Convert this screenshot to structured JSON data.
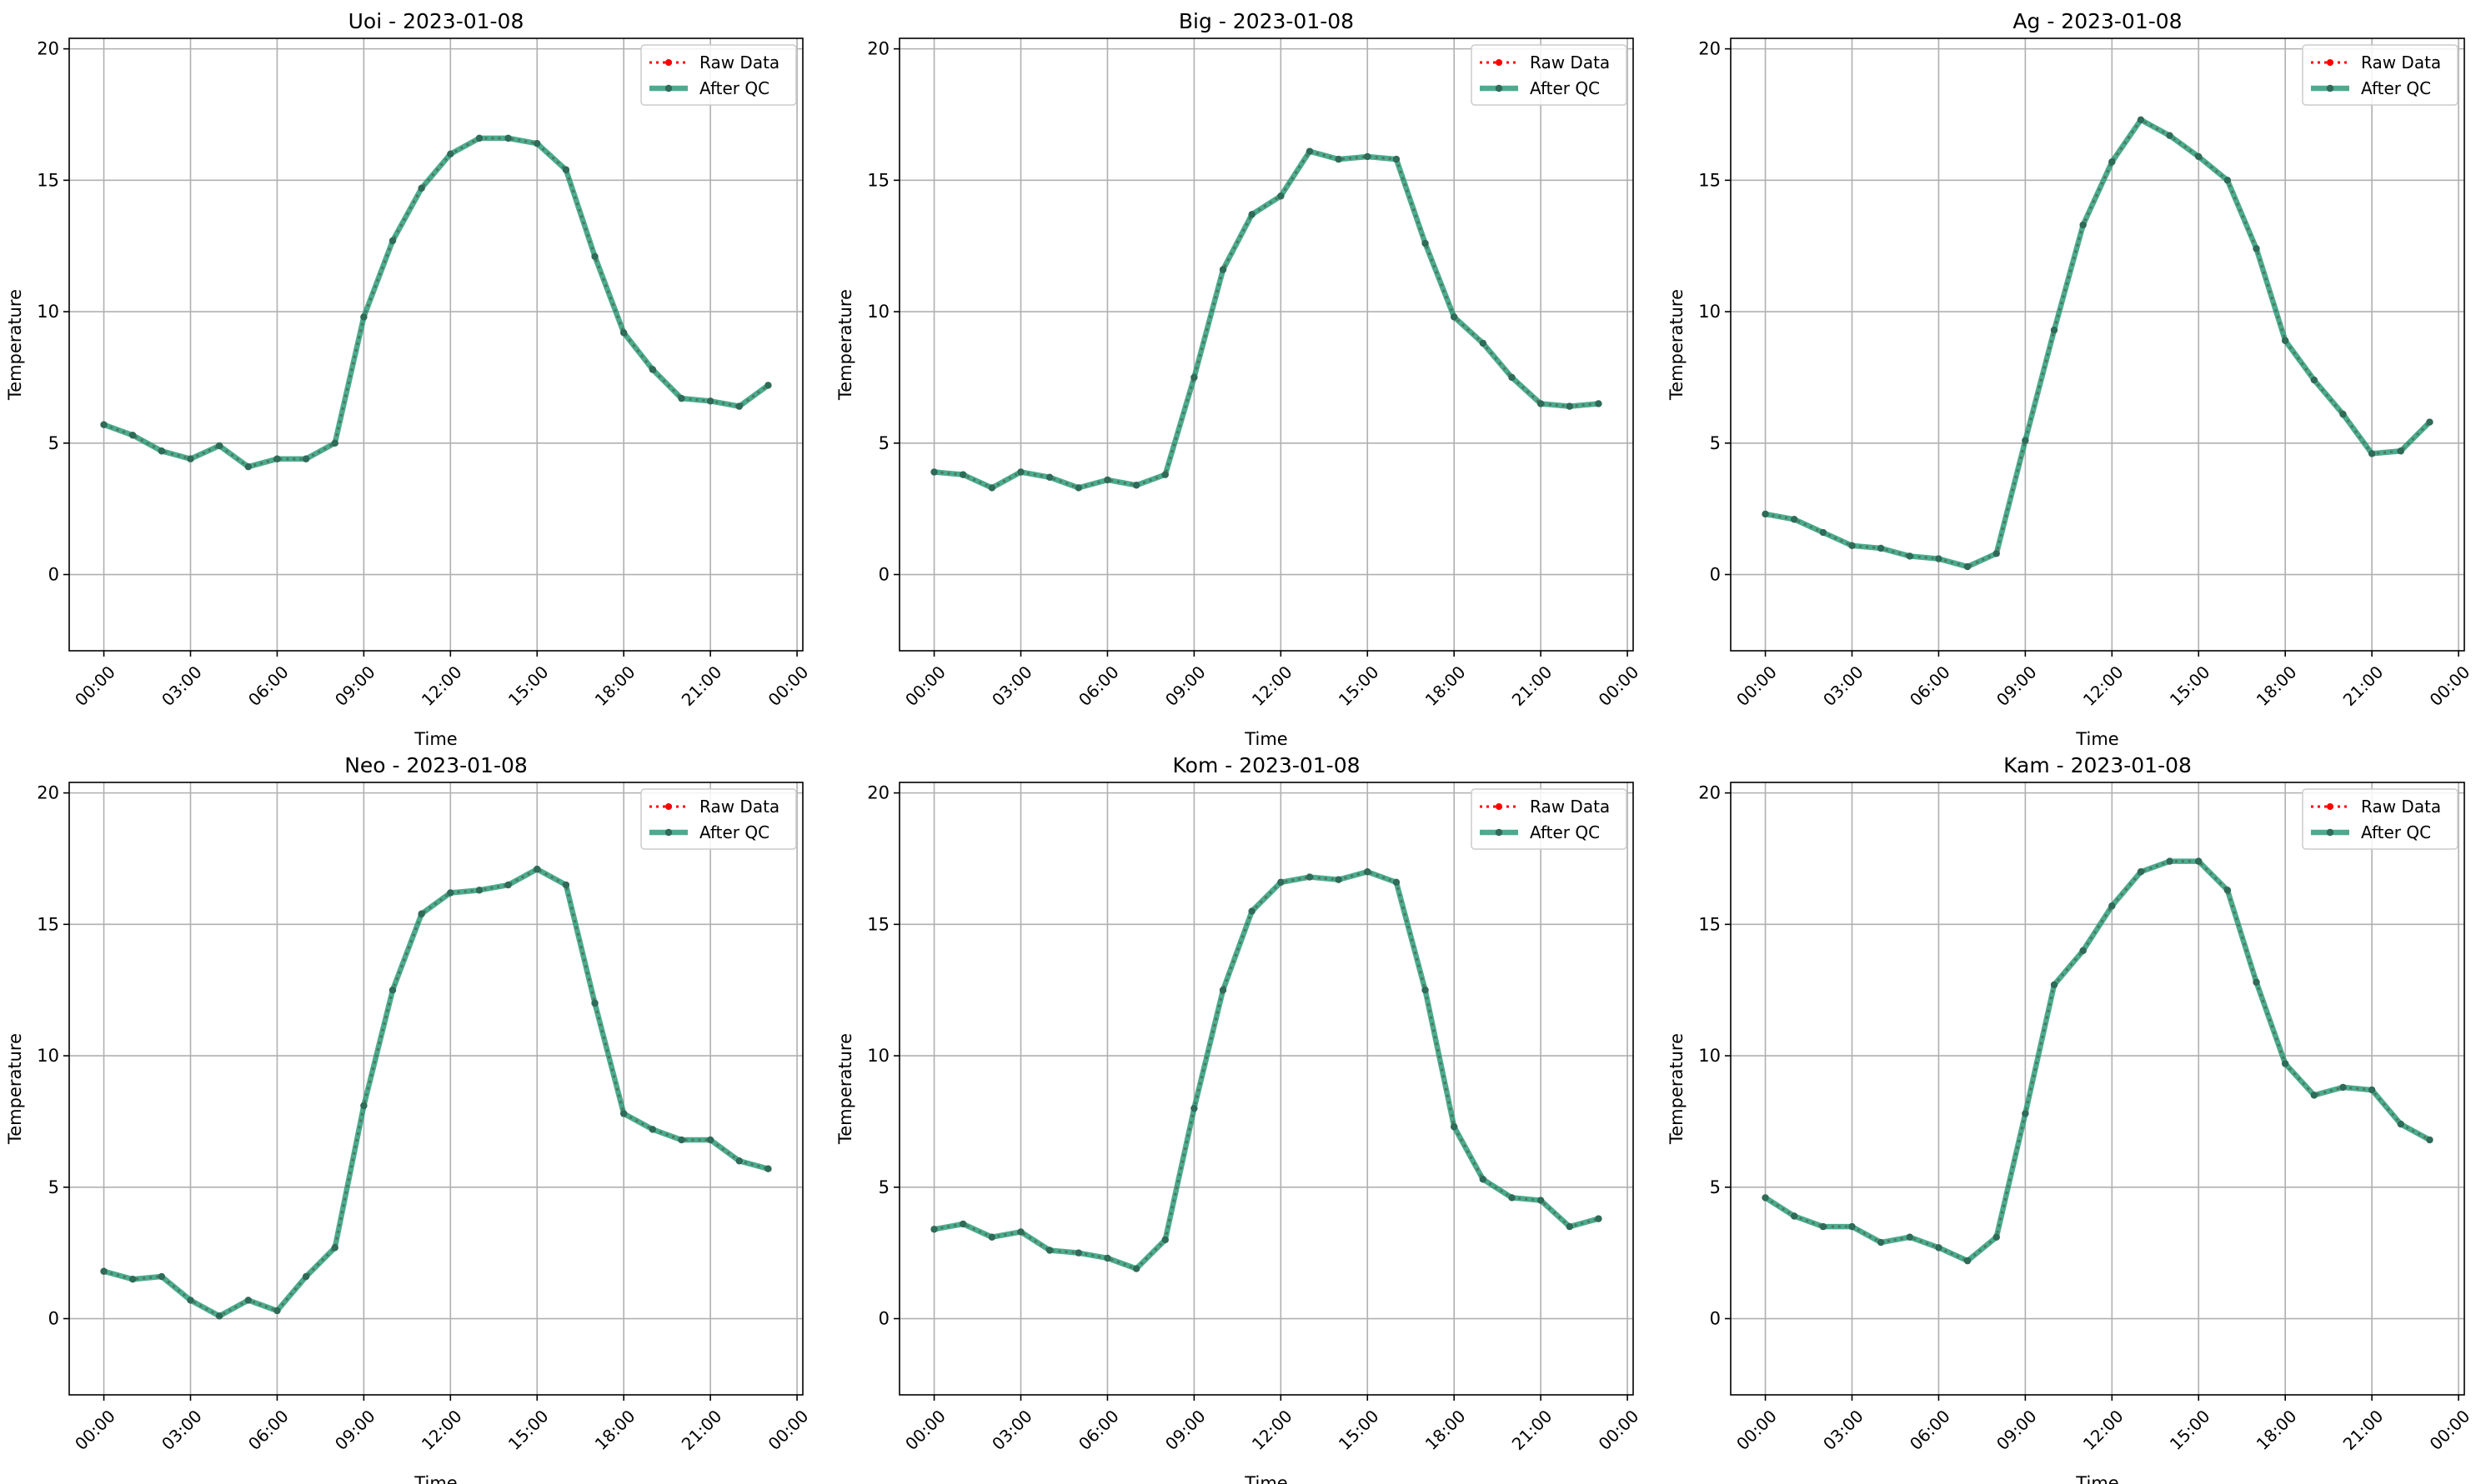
{
  "figure": {
    "legend_labels": {
      "raw": "Raw Data",
      "qc": "After QC"
    },
    "colors": {
      "raw": "#ff0000",
      "qc": "#1f9672",
      "qc_marker": "#2e6b58",
      "grid": "#b0b0b0"
    }
  },
  "chart_data": [
    {
      "type": "line",
      "title": "Uoi - 2023-01-08",
      "xlabel": "Time",
      "ylabel": "Temperature",
      "x_ticks": [
        "00:00",
        "03:00",
        "06:00",
        "09:00",
        "12:00",
        "15:00",
        "18:00",
        "21:00",
        "00:00"
      ],
      "y_ticks": [
        "0",
        "5",
        "10",
        "15",
        "20"
      ],
      "ylim": [
        -2.9,
        20.4
      ],
      "xlim_hours": [
        -1.2,
        24.2
      ],
      "grid": true,
      "legend_position": "upper right",
      "x_hours": [
        0,
        1,
        2,
        3,
        4,
        5,
        6,
        7,
        8,
        9,
        10,
        11,
        12,
        13,
        14,
        15,
        16,
        17,
        18,
        19,
        20,
        21,
        22,
        23
      ],
      "series": [
        {
          "name": "Raw Data",
          "values": [
            5.7,
            5.3,
            4.7,
            4.4,
            4.9,
            4.1,
            4.4,
            4.4,
            5.0,
            9.8,
            12.7,
            14.7,
            16.0,
            16.6,
            16.6,
            16.4,
            15.4,
            12.1,
            9.2,
            7.8,
            6.7,
            6.6,
            6.4,
            7.2
          ]
        },
        {
          "name": "After QC",
          "values": [
            5.7,
            5.3,
            4.7,
            4.4,
            4.9,
            4.1,
            4.4,
            4.4,
            5.0,
            9.8,
            12.7,
            14.7,
            16.0,
            16.6,
            16.6,
            16.4,
            15.4,
            12.1,
            9.2,
            7.8,
            6.7,
            6.6,
            6.4,
            7.2
          ]
        }
      ]
    },
    {
      "type": "line",
      "title": "Big - 2023-01-08",
      "xlabel": "Time",
      "ylabel": "Temperature",
      "x_ticks": [
        "00:00",
        "03:00",
        "06:00",
        "09:00",
        "12:00",
        "15:00",
        "18:00",
        "21:00",
        "00:00"
      ],
      "y_ticks": [
        "0",
        "5",
        "10",
        "15",
        "20"
      ],
      "ylim": [
        -2.9,
        20.4
      ],
      "xlim_hours": [
        -1.2,
        24.2
      ],
      "grid": true,
      "legend_position": "upper right",
      "x_hours": [
        0,
        1,
        2,
        3,
        4,
        5,
        6,
        7,
        8,
        9,
        10,
        11,
        12,
        13,
        14,
        15,
        16,
        17,
        18,
        19,
        20,
        21,
        22,
        23
      ],
      "series": [
        {
          "name": "Raw Data",
          "values": [
            3.9,
            3.8,
            3.3,
            3.9,
            3.7,
            3.3,
            3.6,
            3.4,
            3.8,
            7.5,
            11.6,
            13.7,
            14.4,
            16.1,
            15.8,
            15.9,
            15.8,
            12.6,
            9.8,
            8.8,
            7.5,
            6.5,
            6.4,
            6.5
          ]
        },
        {
          "name": "After QC",
          "values": [
            3.9,
            3.8,
            3.3,
            3.9,
            3.7,
            3.3,
            3.6,
            3.4,
            3.8,
            7.5,
            11.6,
            13.7,
            14.4,
            16.1,
            15.8,
            15.9,
            15.8,
            12.6,
            9.8,
            8.8,
            7.5,
            6.5,
            6.4,
            6.5
          ]
        }
      ]
    },
    {
      "type": "line",
      "title": "Ag - 2023-01-08",
      "xlabel": "Time",
      "ylabel": "Temperature",
      "x_ticks": [
        "00:00",
        "03:00",
        "06:00",
        "09:00",
        "12:00",
        "15:00",
        "18:00",
        "21:00",
        "00:00"
      ],
      "y_ticks": [
        "0",
        "5",
        "10",
        "15",
        "20"
      ],
      "ylim": [
        -2.9,
        20.4
      ],
      "xlim_hours": [
        -1.2,
        24.2
      ],
      "grid": true,
      "legend_position": "upper right",
      "x_hours": [
        0,
        1,
        2,
        3,
        4,
        5,
        6,
        7,
        8,
        9,
        10,
        11,
        12,
        13,
        14,
        15,
        16,
        17,
        18,
        19,
        20,
        21,
        22,
        23
      ],
      "series": [
        {
          "name": "Raw Data",
          "values": [
            2.3,
            2.1,
            1.6,
            1.1,
            1.0,
            0.7,
            0.6,
            0.3,
            0.8,
            5.1,
            9.3,
            13.3,
            15.7,
            17.3,
            16.7,
            15.9,
            15.0,
            12.4,
            8.9,
            7.4,
            6.1,
            4.6,
            4.7,
            5.8
          ]
        },
        {
          "name": "After QC",
          "values": [
            2.3,
            2.1,
            1.6,
            1.1,
            1.0,
            0.7,
            0.6,
            0.3,
            0.8,
            5.1,
            9.3,
            13.3,
            15.7,
            17.3,
            16.7,
            15.9,
            15.0,
            12.4,
            8.9,
            7.4,
            6.1,
            4.6,
            4.7,
            5.8
          ]
        }
      ]
    },
    {
      "type": "line",
      "title": "Neo - 2023-01-08",
      "xlabel": "Time",
      "ylabel": "Temperature",
      "x_ticks": [
        "00:00",
        "03:00",
        "06:00",
        "09:00",
        "12:00",
        "15:00",
        "18:00",
        "21:00",
        "00:00"
      ],
      "y_ticks": [
        "0",
        "5",
        "10",
        "15",
        "20"
      ],
      "ylim": [
        -2.9,
        20.4
      ],
      "xlim_hours": [
        -1.2,
        24.2
      ],
      "grid": true,
      "legend_position": "upper right",
      "x_hours": [
        0,
        1,
        2,
        3,
        4,
        5,
        6,
        7,
        8,
        9,
        10,
        11,
        12,
        13,
        14,
        15,
        16,
        17,
        18,
        19,
        20,
        21,
        22,
        23
      ],
      "series": [
        {
          "name": "Raw Data",
          "values": [
            1.8,
            1.5,
            1.6,
            0.7,
            0.1,
            0.7,
            0.3,
            1.6,
            2.7,
            8.1,
            12.5,
            15.4,
            16.2,
            16.3,
            16.5,
            17.1,
            16.5,
            12.0,
            7.8,
            7.2,
            6.8,
            6.8,
            6.0,
            5.7
          ]
        },
        {
          "name": "After QC",
          "values": [
            1.8,
            1.5,
            1.6,
            0.7,
            0.1,
            0.7,
            0.3,
            1.6,
            2.7,
            8.1,
            12.5,
            15.4,
            16.2,
            16.3,
            16.5,
            17.1,
            16.5,
            12.0,
            7.8,
            7.2,
            6.8,
            6.8,
            6.0,
            5.7
          ]
        }
      ]
    },
    {
      "type": "line",
      "title": "Kom - 2023-01-08",
      "xlabel": "Time",
      "ylabel": "Temperature",
      "x_ticks": [
        "00:00",
        "03:00",
        "06:00",
        "09:00",
        "12:00",
        "15:00",
        "18:00",
        "21:00",
        "00:00"
      ],
      "y_ticks": [
        "0",
        "5",
        "10",
        "15",
        "20"
      ],
      "ylim": [
        -2.9,
        20.4
      ],
      "xlim_hours": [
        -1.2,
        24.2
      ],
      "grid": true,
      "legend_position": "upper right",
      "x_hours": [
        0,
        1,
        2,
        3,
        4,
        5,
        6,
        7,
        8,
        9,
        10,
        11,
        12,
        13,
        14,
        15,
        16,
        17,
        18,
        19,
        20,
        21,
        22,
        23
      ],
      "series": [
        {
          "name": "Raw Data",
          "values": [
            3.4,
            3.6,
            3.1,
            3.3,
            2.6,
            2.5,
            2.3,
            1.9,
            3.0,
            8.0,
            12.5,
            15.5,
            16.6,
            16.8,
            16.7,
            17.0,
            16.6,
            12.5,
            7.3,
            5.3,
            4.6,
            4.5,
            3.5,
            3.8
          ]
        },
        {
          "name": "After QC",
          "values": [
            3.4,
            3.6,
            3.1,
            3.3,
            2.6,
            2.5,
            2.3,
            1.9,
            3.0,
            8.0,
            12.5,
            15.5,
            16.6,
            16.8,
            16.7,
            17.0,
            16.6,
            12.5,
            7.3,
            5.3,
            4.6,
            4.5,
            3.5,
            3.8
          ]
        }
      ]
    },
    {
      "type": "line",
      "title": "Kam - 2023-01-08",
      "xlabel": "Time",
      "ylabel": "Temperature",
      "x_ticks": [
        "00:00",
        "03:00",
        "06:00",
        "09:00",
        "12:00",
        "15:00",
        "18:00",
        "21:00",
        "00:00"
      ],
      "y_ticks": [
        "0",
        "5",
        "10",
        "15",
        "20"
      ],
      "ylim": [
        -2.9,
        20.4
      ],
      "xlim_hours": [
        -1.2,
        24.2
      ],
      "grid": true,
      "legend_position": "upper right",
      "x_hours": [
        0,
        1,
        2,
        3,
        4,
        5,
        6,
        7,
        8,
        9,
        10,
        11,
        12,
        13,
        14,
        15,
        16,
        17,
        18,
        19,
        20,
        21,
        22,
        23
      ],
      "series": [
        {
          "name": "Raw Data",
          "values": [
            4.6,
            3.9,
            3.5,
            3.5,
            2.9,
            3.1,
            2.7,
            2.2,
            3.1,
            7.8,
            12.7,
            14.0,
            15.7,
            17.0,
            17.4,
            17.4,
            16.3,
            12.8,
            9.7,
            8.5,
            8.8,
            8.7,
            7.4,
            6.8
          ]
        },
        {
          "name": "After QC",
          "values": [
            4.6,
            3.9,
            3.5,
            3.5,
            2.9,
            3.1,
            2.7,
            2.2,
            3.1,
            7.8,
            12.7,
            14.0,
            15.7,
            17.0,
            17.4,
            17.4,
            16.3,
            12.8,
            9.7,
            8.5,
            8.8,
            8.7,
            7.4,
            6.8
          ]
        }
      ]
    }
  ]
}
